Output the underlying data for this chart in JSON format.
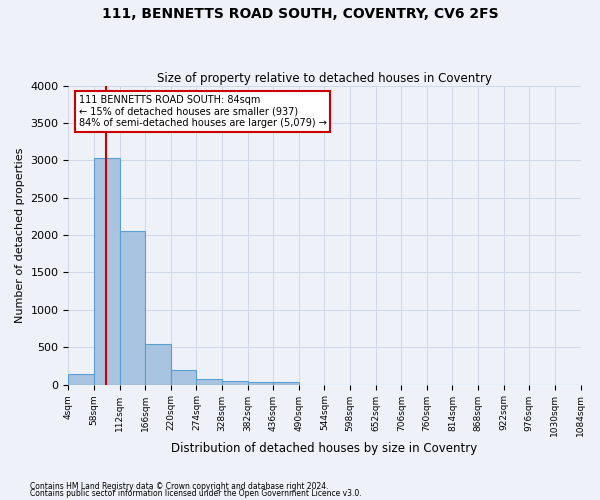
{
  "title": "111, BENNETTS ROAD SOUTH, COVENTRY, CV6 2FS",
  "subtitle": "Size of property relative to detached houses in Coventry",
  "xlabel": "Distribution of detached houses by size in Coventry",
  "ylabel": "Number of detached properties",
  "bar_edges": [
    4,
    58,
    112,
    166,
    220,
    274,
    328,
    382,
    436,
    490,
    544,
    598,
    652,
    706,
    760,
    814,
    868,
    922,
    976,
    1030,
    1084
  ],
  "bar_heights": [
    140,
    3030,
    2060,
    545,
    195,
    80,
    50,
    40,
    40,
    0,
    0,
    0,
    0,
    0,
    0,
    0,
    0,
    0,
    0,
    0
  ],
  "bar_color": "#a8c4e0",
  "bar_edgecolor": "#5a9fd4",
  "grid_color": "#d0d8e8",
  "bg_color": "#eef2f8",
  "red_line_x": 84,
  "annotation_text": "111 BENNETTS ROAD SOUTH: 84sqm\n← 15% of detached houses are smaller (937)\n84% of semi-detached houses are larger (5,079) →",
  "annotation_box_color": "#ffffff",
  "annotation_edge_color": "#cc0000",
  "ylim": [
    0,
    4000
  ],
  "yticks": [
    0,
    500,
    1000,
    1500,
    2000,
    2500,
    3000,
    3500,
    4000
  ],
  "footer1": "Contains HM Land Registry data © Crown copyright and database right 2024.",
  "footer2": "Contains public sector information licensed under the Open Government Licence v3.0."
}
